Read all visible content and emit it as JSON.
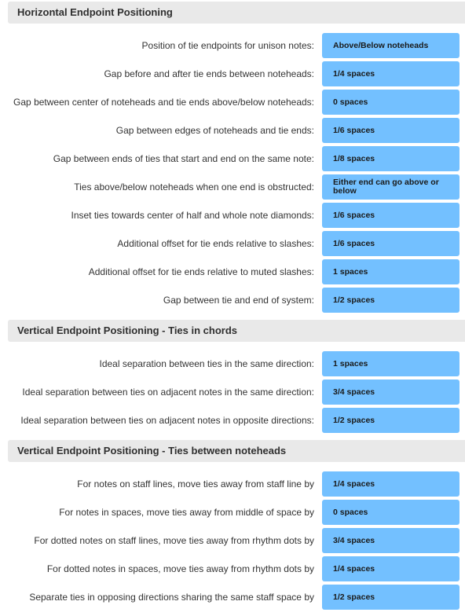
{
  "sections": [
    {
      "title": "Horizontal Endpoint Positioning",
      "rows": [
        {
          "label": "Position of tie endpoints for unison notes:",
          "value": "Above/Below noteheads"
        },
        {
          "label": "Gap before and after tie ends between noteheads:",
          "value": "1/4 spaces"
        },
        {
          "label": "Gap between center of noteheads and tie ends above/below noteheads:",
          "value": "0 spaces"
        },
        {
          "label": "Gap between edges of noteheads and tie ends:",
          "value": "1/6 spaces"
        },
        {
          "label": "Gap between ends of ties that start and end on the same note:",
          "value": "1/8 spaces"
        },
        {
          "label": "Ties above/below noteheads when one end is obstructed:",
          "value": "Either end can go above or below"
        },
        {
          "label": "Inset ties towards center of half and whole note diamonds:",
          "value": "1/6 spaces"
        },
        {
          "label": "Additional offset for tie ends relative to slashes:",
          "value": "1/6 spaces"
        },
        {
          "label": "Additional offset for tie ends relative to muted slashes:",
          "value": "1 spaces"
        },
        {
          "label": "Gap between tie and end of system:",
          "value": "1/2 spaces"
        }
      ]
    },
    {
      "title": "Vertical Endpoint Positioning - Ties in chords",
      "rows": [
        {
          "label": "Ideal separation between ties in the same direction:",
          "value": "1 spaces"
        },
        {
          "label": "Ideal separation between ties on adjacent notes in the same direction:",
          "value": "3/4 spaces"
        },
        {
          "label": "Ideal separation between ties on adjacent notes in opposite directions:",
          "value": "1/2 spaces"
        }
      ]
    },
    {
      "title": "Vertical Endpoint Positioning - Ties between noteheads",
      "rows": [
        {
          "label": "For notes on staff lines, move ties away from staff line by",
          "value": "1/4 spaces"
        },
        {
          "label": "For notes in spaces, move ties away from middle of space by",
          "value": "0 spaces"
        },
        {
          "label": "For dotted notes on staff lines, move ties away from rhythm dots by",
          "value": "3/4 spaces"
        },
        {
          "label": "For dotted notes in spaces, move ties away from rhythm dots by",
          "value": "1/4 spaces"
        },
        {
          "label": "Separate ties in opposing directions sharing the same staff space by",
          "value": "1/2 spaces"
        }
      ]
    }
  ]
}
